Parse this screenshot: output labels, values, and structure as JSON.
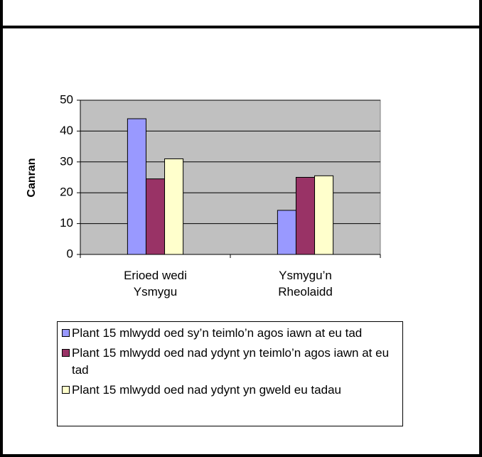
{
  "chart_data": {
    "type": "bar",
    "ylabel": "Canran",
    "categories": [
      "Erioed wedi Ysmygu",
      "Ysmygu’n Rheolaidd"
    ],
    "series": [
      {
        "name": "Plant 15 mlwydd oed sy’n teimlo’n agos iawn at eu tad",
        "color": "#9999ff",
        "values": [
          44,
          14.3
        ]
      },
      {
        "name": "Plant 15 mlwydd oed nad ydynt yn teimlo’n agos iawn at eu tad",
        "color": "#993366",
        "values": [
          24.5,
          25
        ]
      },
      {
        "name": "Plant 15 mlwydd oed nad ydynt yn gweld eu tadau",
        "color": "#ffffcc",
        "values": [
          31,
          25.5
        ]
      }
    ],
    "ylim": [
      0,
      50
    ],
    "yticks": [
      0,
      10,
      20,
      30,
      40,
      50
    ],
    "grid": true,
    "plot_background": "#c0c0c0"
  }
}
